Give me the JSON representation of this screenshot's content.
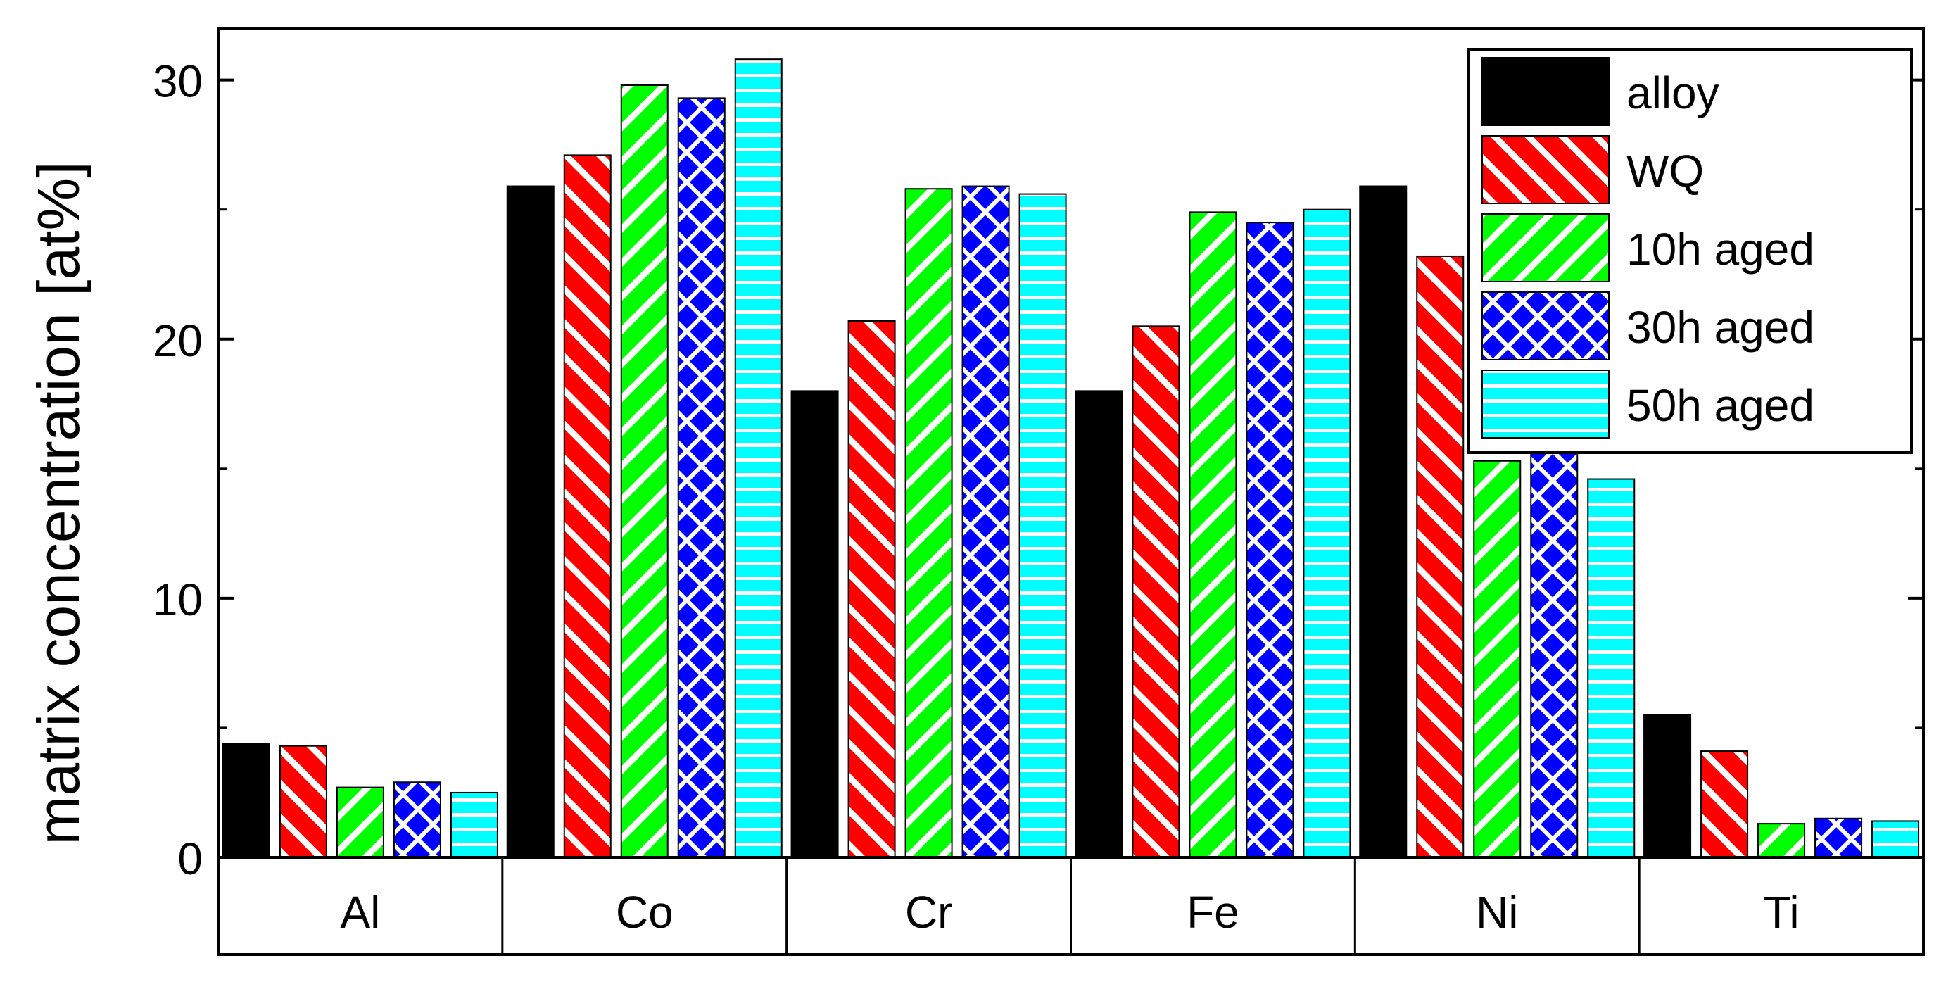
{
  "chart_data": {
    "type": "bar",
    "title": "",
    "xlabel": "",
    "ylabel": "matrix concentration [at%]",
    "categories": [
      "Al",
      "Co",
      "Cr",
      "Fe",
      "Ni",
      "Ti"
    ],
    "ylim": [
      0,
      32
    ],
    "yticks": [
      0,
      10,
      20,
      30
    ],
    "grid": false,
    "legend_position": "top-right",
    "series": [
      {
        "name": "alloy",
        "color": "#000000",
        "pattern": "solid",
        "values": [
          4.4,
          25.9,
          18.0,
          18.0,
          25.9,
          5.5
        ]
      },
      {
        "name": "WQ",
        "color": "#ff0000",
        "pattern": "diagonal-up-stripes",
        "values": [
          4.3,
          27.1,
          20.7,
          20.5,
          23.2,
          4.1
        ]
      },
      {
        "name": "10h aged",
        "color": "#00ff00",
        "pattern": "diagonal-down-stripes",
        "values": [
          2.7,
          29.8,
          25.8,
          24.9,
          15.3,
          1.3
        ]
      },
      {
        "name": "30h aged",
        "color": "#0000ff",
        "pattern": "crosshatch",
        "values": [
          2.9,
          29.3,
          25.9,
          24.5,
          15.7,
          1.5
        ]
      },
      {
        "name": "50h aged",
        "color": "#00ffff",
        "pattern": "horizontal-stripes",
        "values": [
          2.5,
          30.8,
          25.6,
          25.0,
          14.6,
          1.4
        ]
      }
    ]
  }
}
